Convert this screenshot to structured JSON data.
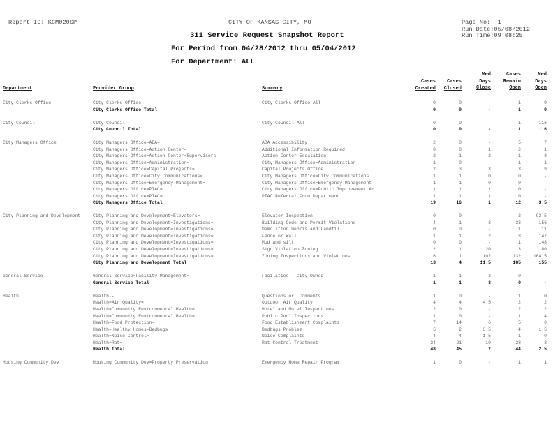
{
  "header": {
    "report_id": "Report ID: KCM020SP",
    "city": "CITY OF KANSAS CITY, MO",
    "title": "311 Service Request Snapshot Report",
    "period": "For Period from 04/28/2012 thru 05/04/2012",
    "department": "For Department: ALL",
    "page_no": "Page No:  1",
    "run_date": "Run Date:05/08/2012",
    "run_time": "Run Time:09:08:25"
  },
  "columns": {
    "department": "Department",
    "provider": "Provider Group",
    "summary": "Summary",
    "created": [
      "Cases",
      "Created"
    ],
    "closed": [
      "Cases",
      "Closed"
    ],
    "med_close": [
      "Med",
      "Days",
      "Close"
    ],
    "remain": [
      "Cases",
      "Remain",
      "Open"
    ],
    "med_open": [
      "Med",
      "Days",
      "Open"
    ]
  },
  "departments": [
    {
      "name": "City Clerks Office",
      "rows": [
        [
          "City Clerks Office--",
          "City Clerks Office-All",
          "0",
          "0",
          "-",
          "1",
          "9"
        ]
      ],
      "total": [
        "City Clerks Office Total",
        "0",
        "0",
        "-",
        "1",
        "9"
      ]
    },
    {
      "name": "City Council",
      "rows": [
        [
          "City Council--",
          "City Council-All",
          "0",
          "0",
          "-",
          "1",
          "116"
        ]
      ],
      "total": [
        "City Council Total",
        "0",
        "0",
        "-",
        "1",
        "116"
      ]
    },
    {
      "name": "City Managers Office",
      "rows": [
        [
          "City Managers Office=ADA=",
          "ADA Accessibility",
          "2",
          "0",
          "-",
          "5",
          "7"
        ],
        [
          "City Managers Office=Action Center=",
          "Additional Information Required",
          "8",
          "8",
          "1",
          "2",
          "1"
        ],
        [
          "City Managers Office=Action Center=Supervisors",
          "Action Center Escalation",
          "2",
          "1",
          "2",
          "1",
          "3"
        ],
        [
          "City Managers Office=Administration=",
          "City Managers Office=Administration",
          "1",
          "0",
          "-",
          "1",
          "1"
        ],
        [
          "City Managers Office=Capital Projects=",
          "Capital Projects Office",
          "2",
          "3",
          "3",
          "3",
          "9"
        ],
        [
          "City Managers Office=City Communications=",
          "City Managers Office=City Communications",
          "1",
          "1",
          "0",
          "0",
          "-"
        ],
        [
          "City Managers Office=Emergency Management=",
          "City Managers Office=Emergency Management",
          "1",
          "1",
          "0",
          "0",
          "-"
        ],
        [
          "City Managers Office=PIAC=",
          "City Managers Office=Public Improvement Ad",
          "1",
          "1",
          "1",
          "0",
          "-"
        ],
        [
          "City Managers Office=PIAC=",
          "PIAC Referral From Department",
          "1",
          "1",
          "1",
          "0",
          "-"
        ]
      ],
      "total": [
        "City Managers Office Total",
        "19",
        "16",
        "1",
        "12",
        "3.5"
      ]
    },
    {
      "name": "City Planning and Development",
      "rows": [
        [
          "City Planning and Development=Elevators=",
          "Elevator Inspection",
          "0",
          "0",
          "-",
          "2",
          "93.5"
        ],
        [
          "City Planning and Development=Investigations=",
          "Building Code and Permit Violations",
          "4",
          "1",
          "3",
          "33",
          "156"
        ],
        [
          "City Planning and Development=Investigations=",
          "Demolition Debris and Landfill",
          "0",
          "0",
          "-",
          "1",
          "11"
        ],
        [
          "City Planning and Development=Investigations=",
          "Fence or Wall",
          "1",
          "1",
          "2",
          "3",
          "147"
        ],
        [
          "City Planning and Development=Investigations=",
          "Mud and silt",
          "0",
          "0",
          "-",
          "1",
          "148"
        ],
        [
          "City Planning and Development=Investigations=",
          "Sign Violation Zoning",
          "2",
          "1",
          "20",
          "13",
          "80"
        ],
        [
          "City Planning and Development=Investigations=",
          "Zoning Inspections and Violations",
          "6",
          "1",
          "102",
          "132",
          "164.5"
        ]
      ],
      "total": [
        "City Planning and Development Total",
        "13",
        "4",
        "11.5",
        "185",
        "155"
      ]
    },
    {
      "name": "General Service",
      "rows": [
        [
          "General Service=Facility Management=",
          "Facilities - City Owned",
          "1",
          "1",
          "3",
          "0",
          "-"
        ]
      ],
      "total": [
        "General Service Total",
        "1",
        "1",
        "3",
        "0",
        "-"
      ]
    },
    {
      "name": "Health",
      "rows": [
        [
          "Health--",
          "Questions or  Comments",
          "1",
          "0",
          "-",
          "1",
          "0"
        ],
        [
          "Health=Air Quality=",
          "Outdoor Air Quality",
          "4",
          "4",
          "4.5",
          "2",
          "2"
        ],
        [
          "Health=Community Environmental Health=",
          "Hotel and Motel Inspections",
          "2",
          "0",
          "-",
          "2",
          "2"
        ],
        [
          "Health=Community Environmental Health=",
          "Public Pool Inspections",
          "1",
          "0",
          "-",
          "1",
          "4"
        ],
        [
          "Health=Food Protection=",
          "Food Establishment Complaints",
          "7",
          "14",
          "6",
          "5",
          "0"
        ],
        [
          "Health=Healthy Homes=Bedbugs",
          "Bedbugs Problem",
          "5",
          "2",
          "3.5",
          "4",
          "1.5"
        ],
        [
          "Health=Noise Control=",
          "Noise Complaints",
          "4",
          "4",
          "1.5",
          "1",
          "0"
        ],
        [
          "Health=Rat=",
          "Rat Control Treatment",
          "24",
          "21",
          "10",
          "28",
          "3"
        ]
      ],
      "total": [
        "Health Total",
        "48",
        "45",
        "7",
        "44",
        "2.5"
      ]
    },
    {
      "name": "Housing Community Dev",
      "rows": [
        [
          "Housing Community Dev=Property Preservation",
          "Emergency Home Repair Program",
          "1",
          "0",
          "-",
          "1",
          "1"
        ]
      ]
    }
  ]
}
